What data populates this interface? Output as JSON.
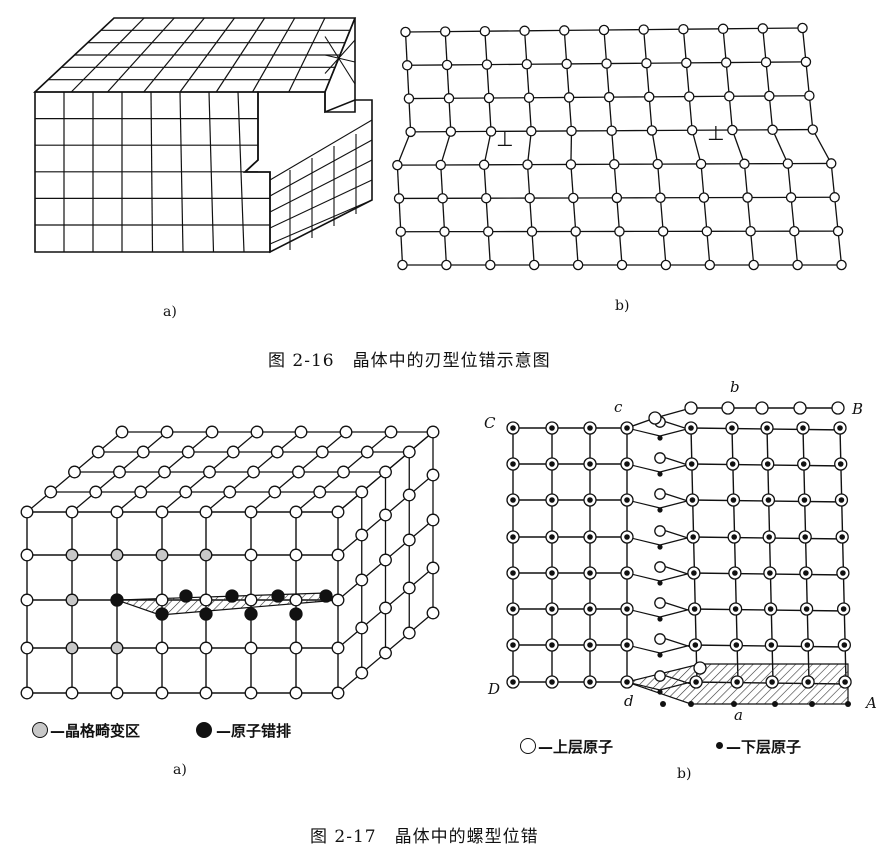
{
  "fig16": {
    "caption": "图 2-16　晶体中的刃型位错示意图",
    "sub_a": "a)",
    "sub_b": "b)",
    "dislocation_symbol": "⊥"
  },
  "fig17": {
    "caption": "图 2-17　晶体中的螺型位错",
    "sub_a": "a)",
    "sub_b": "b)",
    "legend_a": [
      "—晶格畸变区",
      "—原子错排"
    ],
    "legend_b": [
      "—上层原子",
      "—下层原子"
    ],
    "points": {
      "A": "A",
      "B": "B",
      "C": "C",
      "D": "D",
      "a": "a",
      "b": "b",
      "c": "c",
      "d": "d"
    }
  },
  "colors": {
    "ink": "#111111",
    "distorted": "#c8c8c8",
    "misplaced": "#111111",
    "hatch": "#333333"
  }
}
